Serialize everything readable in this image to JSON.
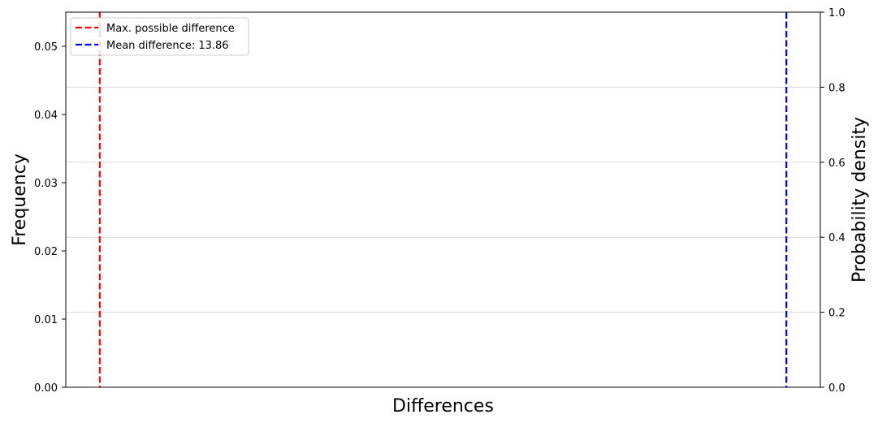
{
  "chart_data": {
    "type": "line",
    "title": "",
    "xlabel": "Differences",
    "ylabel_left": "Frequency",
    "ylabel_right": "Probability density",
    "y_left": {
      "lim": [
        0,
        0.055
      ],
      "ticks": [
        0.0,
        0.01,
        0.02,
        0.03,
        0.04,
        0.05
      ],
      "tick_labels": [
        "0.00",
        "0.01",
        "0.02",
        "0.03",
        "0.04",
        "0.05"
      ]
    },
    "y_right": {
      "lim": [
        0,
        1.0
      ],
      "ticks": [
        0.0,
        0.2,
        0.4,
        0.6,
        0.8,
        1.0
      ],
      "tick_labels": [
        "0.0",
        "0.2",
        "0.4",
        "0.6",
        "0.8",
        "1.0"
      ],
      "grid": true
    },
    "x_ticks_shown": false,
    "vertical_lines": [
      {
        "name": "Max. possible difference",
        "color": "#ff0000",
        "style": "dashed",
        "x_fraction": 0.045
      },
      {
        "name": "Mean difference: 13.86",
        "color": "#0000ff",
        "style": "dashed",
        "x_fraction": 0.955
      }
    ],
    "legend_position": "top-left"
  }
}
